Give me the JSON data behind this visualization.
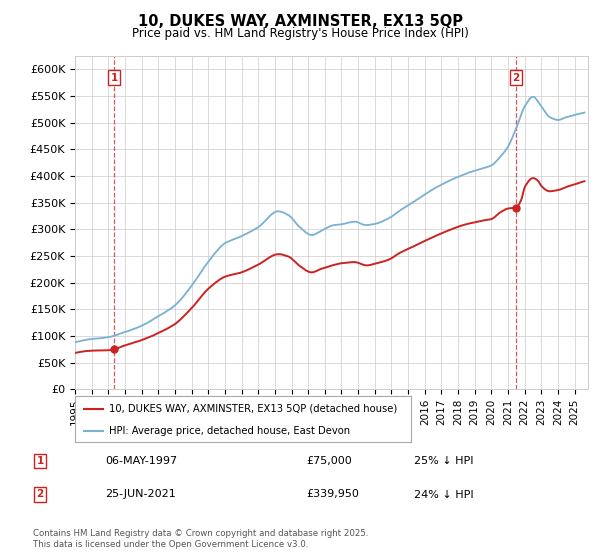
{
  "title": "10, DUKES WAY, AXMINSTER, EX13 5QP",
  "subtitle": "Price paid vs. HM Land Registry's House Price Index (HPI)",
  "ylim": [
    0,
    625000
  ],
  "yticks": [
    0,
    50000,
    100000,
    150000,
    200000,
    250000,
    300000,
    350000,
    400000,
    450000,
    500000,
    550000,
    600000
  ],
  "ytick_labels": [
    "£0",
    "£50K",
    "£100K",
    "£150K",
    "£200K",
    "£250K",
    "£300K",
    "£350K",
    "£400K",
    "£450K",
    "£500K",
    "£550K",
    "£600K"
  ],
  "hpi_color": "#7ab0d4",
  "price_color": "#cc2222",
  "sale1_date": 1997.36,
  "sale1_price": 75000,
  "sale2_date": 2021.48,
  "sale2_price": 339950,
  "legend_label1": "10, DUKES WAY, AXMINSTER, EX13 5QP (detached house)",
  "legend_label2": "HPI: Average price, detached house, East Devon",
  "table_row1": [
    "1",
    "06-MAY-1997",
    "£75,000",
    "25% ↓ HPI"
  ],
  "table_row2": [
    "2",
    "25-JUN-2021",
    "£339,950",
    "24% ↓ HPI"
  ],
  "footer": "Contains HM Land Registry data © Crown copyright and database right 2025.\nThis data is licensed under the Open Government Licence v3.0.",
  "bg_color": "#ffffff",
  "grid_color": "#cccccc"
}
